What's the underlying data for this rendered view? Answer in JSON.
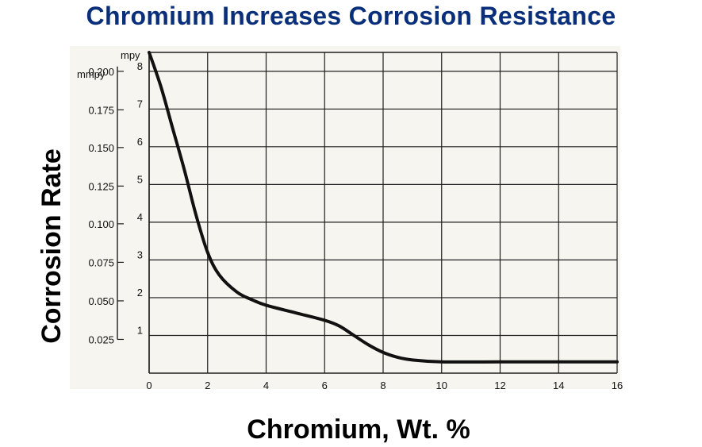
{
  "chart_data": {
    "type": "line",
    "title": "Chromium Increases Corrosion Resistance",
    "xlabel": "Chromium, Wt. %",
    "ylabel": "Corrosion Rate",
    "y_unit_left": "mmpy",
    "y_unit_right": "mpy",
    "xlim": [
      0,
      16
    ],
    "ylim": [
      0,
      8.5
    ],
    "x_ticks": [
      "0",
      "2",
      "4",
      "6",
      "8",
      "10",
      "12",
      "14",
      "16"
    ],
    "y_ticks_mpy": [
      "1",
      "2",
      "3",
      "4",
      "5",
      "6",
      "7",
      "8"
    ],
    "y_ticks_mmpy": [
      "0.025",
      "0.050",
      "0.075",
      "0.100",
      "0.125",
      "0.150",
      "0.175",
      "0.200"
    ],
    "grid": true,
    "series": [
      {
        "x": [
          0,
          0.4,
          0.8,
          1.2,
          1.6,
          2.0,
          2.4,
          3.0,
          3.5,
          4.0,
          5.0,
          6.0,
          6.5,
          7.0,
          7.5,
          8.0,
          8.5,
          9.0,
          10.0,
          12.0,
          14.0,
          16.0
        ],
        "y": [
          8.5,
          7.6,
          6.5,
          5.4,
          4.2,
          3.2,
          2.6,
          2.15,
          1.95,
          1.8,
          1.6,
          1.4,
          1.25,
          1.0,
          0.75,
          0.55,
          0.42,
          0.35,
          0.3,
          0.3,
          0.3,
          0.3
        ]
      }
    ],
    "colors": {
      "line": "#111111",
      "grid": "#1f1f1f",
      "title": "#0a2f7a"
    }
  }
}
